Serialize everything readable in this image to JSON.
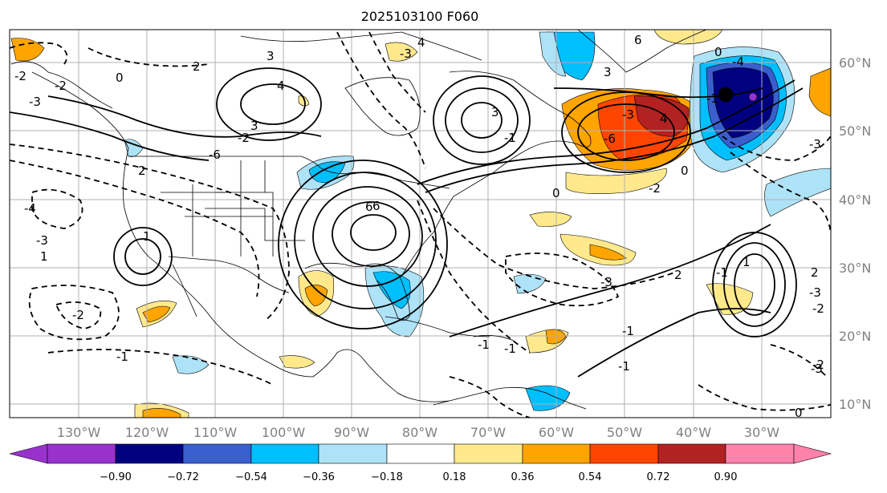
{
  "title": "2025103100 F060",
  "lat_labels": [
    "60°N",
    "50°N",
    "40°N",
    "30°N",
    "20°N",
    "10°N"
  ],
  "lon_labels": [
    "130°W",
    "120°W",
    "110°W",
    "100°W",
    "90°W",
    "80°W",
    "70°W",
    "60°W",
    "50°W",
    "40°W",
    "30°W"
  ],
  "colorbar": {
    "levels": [
      "−0.90",
      "−0.72",
      "−0.54",
      "−0.36",
      "−0.18",
      "0.18",
      "0.36",
      "0.54",
      "0.72",
      "0.90"
    ],
    "colors": [
      "#9932cc",
      "#000080",
      "#3a5fcd",
      "#00bfff",
      "#aee2f7",
      "#ffffff",
      "#ffe98c",
      "#ffa500",
      "#ff4500",
      "#b22222",
      "#ff82ab"
    ]
  },
  "contour_labels": [
    "0",
    "-2",
    "-3",
    "-4",
    "-2",
    "-1",
    "2",
    "3",
    "4",
    "3",
    "2",
    "1",
    "6",
    "3",
    "-3",
    "3",
    "6",
    "-3",
    "4",
    "-6",
    "-4",
    "-6",
    "0",
    "-3",
    "-1",
    "-3",
    "2",
    "-1",
    "0",
    "-1",
    "-2",
    "1",
    "-1",
    "2",
    "-3",
    "-1",
    "-1",
    "-2",
    "-3",
    "0",
    "-2",
    "6",
    "4",
    "-2",
    "1",
    "-1",
    "-3",
    "-2",
    "0"
  ],
  "colors": {
    "grid": "#b0b0b0",
    "coast": "#000000",
    "contour": "#000000"
  }
}
